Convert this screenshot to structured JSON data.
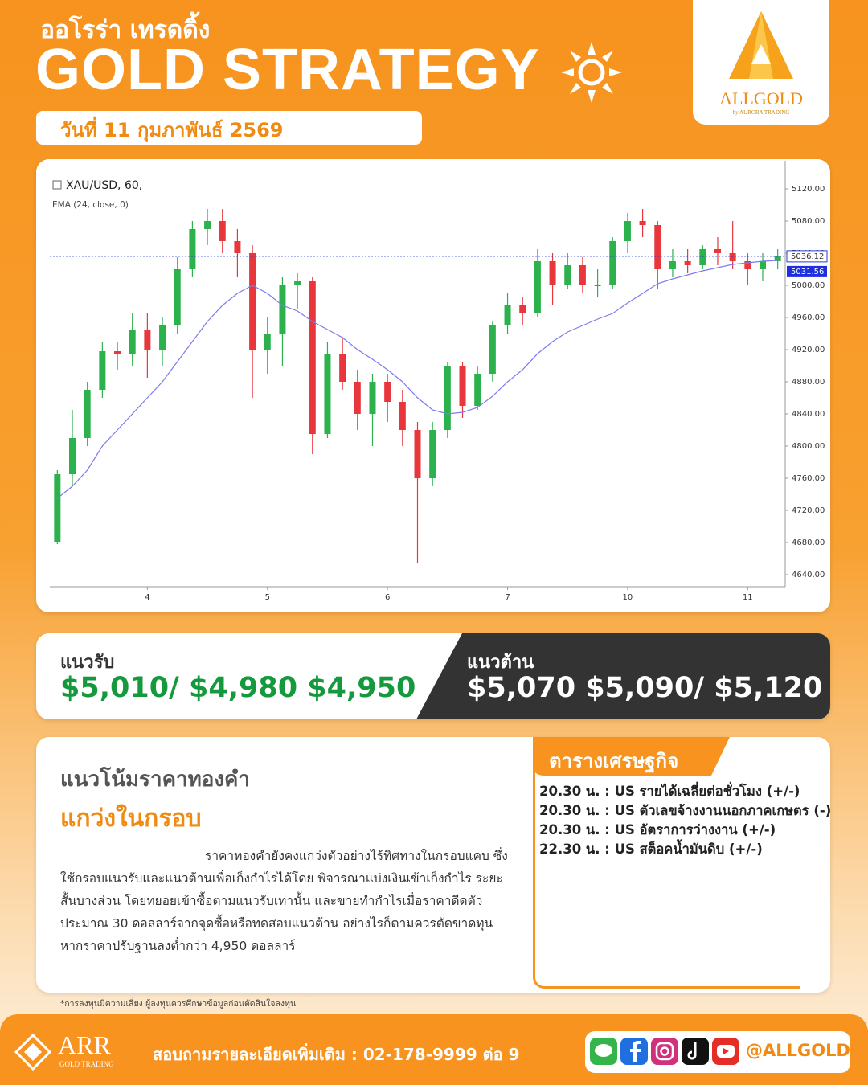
{
  "header": {
    "subtitle": "ออโรร่า เทรดดิ้ง",
    "title": "GOLD STRATEGY",
    "date": "วันที่ 11 กุมภาพันธ์ 2569"
  },
  "logo": {
    "name": "ALLGOLD",
    "tagline": "by AURORA TRADING"
  },
  "chart_data": {
    "type": "candlestick",
    "categories": [
      null,
      null,
      null,
      null,
      null,
      null,
      "4",
      null,
      null,
      null,
      null,
      null,
      null,
      null,
      "5",
      null,
      null,
      null,
      null,
      null,
      null,
      null,
      "6",
      null,
      null,
      null,
      null,
      null,
      null,
      null,
      "7",
      null,
      null,
      null,
      null,
      null,
      null,
      null,
      "10",
      null,
      null,
      null,
      null,
      null,
      null,
      null,
      "11",
      null,
      null
    ],
    "ylim": [
      4625,
      5150
    ],
    "yticks": [
      {
        "value": 4640,
        "label": "4640.00"
      },
      {
        "value": 4680,
        "label": "4680.00"
      },
      {
        "value": 4720,
        "label": "4720.00"
      },
      {
        "value": 4760,
        "label": "4760.00"
      },
      {
        "value": 4800,
        "label": "4800.00"
      },
      {
        "value": 4840,
        "label": "4840.00"
      },
      {
        "value": 4880,
        "label": "4880.00"
      },
      {
        "value": 4920,
        "label": "4920.00"
      },
      {
        "value": 4960,
        "label": "4960.00"
      },
      {
        "value": 5000,
        "label": "5000.00"
      },
      {
        "value": 5040,
        "label": "5040.00"
      },
      {
        "value": 5080,
        "label": "5080.00"
      },
      {
        "value": 5120,
        "label": "5120.00"
      }
    ],
    "series": [
      {
        "name": "XAU/USD, 60,",
        "up_color": "#2bb24c",
        "down_color": "#e8363d",
        "last_price": 5036.12,
        "last_color": "#2a3bd6",
        "open": [
          4680,
          4765,
          4810,
          4870,
          4918,
          4915,
          4945,
          4920,
          4950,
          5020,
          5070,
          5080,
          5055,
          5040,
          4920,
          4940,
          5000,
          5005,
          4815,
          4915,
          4880,
          4840,
          4880,
          4855,
          4820,
          4760,
          4820,
          4900,
          4850,
          4890,
          4950,
          4975,
          4965,
          5030,
          5000,
          5025,
          5000,
          5000,
          5055,
          5080,
          5075,
          5020,
          5030,
          5025,
          5045,
          5040,
          5030,
          5020,
          5030
        ],
        "high": [
          4770,
          4845,
          4880,
          4930,
          4930,
          4965,
          4965,
          4960,
          5035,
          5080,
          5095,
          5095,
          5070,
          5050,
          4960,
          5010,
          5015,
          5010,
          4930,
          4935,
          4895,
          4890,
          4890,
          4870,
          4830,
          4830,
          4905,
          4905,
          4900,
          4955,
          4990,
          4985,
          5045,
          5040,
          5040,
          5035,
          5020,
          5060,
          5090,
          5095,
          5080,
          5045,
          5045,
          5050,
          5060,
          5080,
          5040,
          5040,
          5045
        ],
        "low": [
          4678,
          4750,
          4800,
          4860,
          4895,
          4900,
          4885,
          4900,
          4940,
          5010,
          5050,
          5040,
          5010,
          4860,
          4890,
          4900,
          4970,
          4790,
          4810,
          4870,
          4820,
          4800,
          4830,
          4800,
          4655,
          4750,
          4810,
          4835,
          4845,
          4880,
          4940,
          4950,
          4960,
          4975,
          4995,
          4990,
          4985,
          4995,
          5040,
          5060,
          4995,
          5010,
          5015,
          5020,
          5025,
          5020,
          5000,
          5005,
          5020
        ],
        "close": [
          4765,
          4810,
          4870,
          4918,
          4915,
          4945,
          4920,
          4950,
          5020,
          5070,
          5080,
          5055,
          5040,
          4920,
          4940,
          5000,
          5005,
          4815,
          4915,
          4880,
          4840,
          4880,
          4855,
          4820,
          4760,
          4820,
          4900,
          4850,
          4890,
          4950,
          4975,
          4965,
          5030,
          5000,
          5025,
          5000,
          5000,
          5055,
          5080,
          5075,
          5020,
          5030,
          5025,
          5045,
          5040,
          5030,
          5020,
          5030,
          5036
        ]
      },
      {
        "name": "EMA (24, close, 0)",
        "color": "#7b7bef",
        "last_value": 5031.56,
        "values": [
          4735,
          4750,
          4770,
          4800,
          4820,
          4840,
          4860,
          4880,
          4905,
          4930,
          4955,
          4975,
          4990,
          5000,
          4990,
          4975,
          4968,
          4955,
          4945,
          4935,
          4920,
          4908,
          4895,
          4880,
          4860,
          4845,
          4840,
          4842,
          4848,
          4862,
          4880,
          4895,
          4915,
          4930,
          4942,
          4950,
          4958,
          4965,
          4978,
          4990,
          5002,
          5008,
          5013,
          5018,
          5022,
          5026,
          5028,
          5030,
          5031
        ]
      }
    ]
  },
  "support": {
    "label": "แนวรับ",
    "levels": "$5,010/ $4,980 $4,950"
  },
  "resistance": {
    "label": "แนวต้าน",
    "levels": "$5,070 $5,090/ $5,120"
  },
  "outlook": {
    "heading": "แนวโน้มราคาทองคำ",
    "trend": "แกว่งในกรอบ",
    "body": "ราคาทองคำยังคงแกว่งตัวอย่างไร้ทิศทางในกรอบแคบ ซึ่งใช้กรอบแนวรับและแนวต้านเพื่อเก็งกำไรได้โดย พิจารณาแบ่งเงินเข้าเก็งกำไร ระยะสั้นบางส่วน โดยทยอยเข้าซื้อตามแนวรับเท่านั้น และขายทำกำไรเมื่อราคาดีดตัวประมาณ 30 ดอลลาร์จากจุดซื้อหรือทดสอบแนวต้าน อย่างไรก็ตามควรตัดขาดทุนหากราคาปรับฐานลงต่ำกว่า 4,950 ดอลลาร์"
  },
  "calendar": {
    "title": "ตารางเศรษฐกิจ",
    "events": [
      "20.30 น. : US  รายได้เฉลี่ยต่อชั่วโมง (+/-)",
      "20.30 น. : US  ตัวเลขจ้างงานนอกภาคเกษตร (-)",
      "20.30 น. : US  อัตราการว่างงาน (+/-)",
      "22.30 น. : US  สต็อคน้ำมันดิบ (+/-)"
    ]
  },
  "disclaimer": "*การลงทุนมีความเสี่ยง ผู้ลงทุนควรศึกษาข้อมูลก่อนตัดสินใจลงทุน",
  "footer": {
    "brand": "ARR",
    "brand_sub": "GOLD TRADING",
    "contact": "สอบถามรายละเอียดเพิ่มเติม : 02-178-9999 ต่อ 9",
    "handle": "@ALLGOLD"
  }
}
